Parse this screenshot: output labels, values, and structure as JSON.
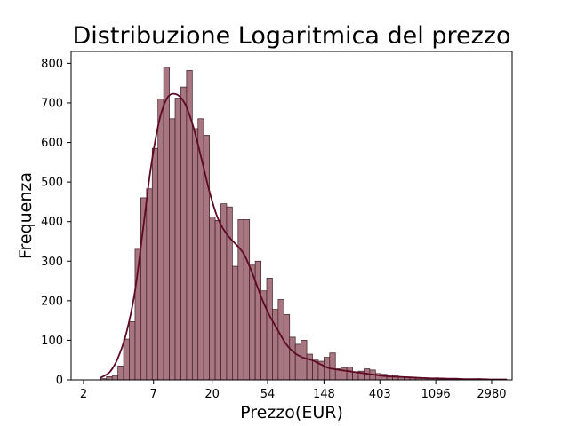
{
  "chart_data": {
    "type": "bar",
    "title": "Distribuzione Logaritmica del prezzo",
    "xlabel": "Prezzo(EUR)",
    "ylabel": "Frequenza",
    "x_scale": "log",
    "xlim": [
      1.6,
      4300
    ],
    "ylim": [
      0,
      830
    ],
    "x_ticks": [
      {
        "value": 2,
        "label": "2"
      },
      {
        "value": 7,
        "label": "7"
      },
      {
        "value": 20,
        "label": "20"
      },
      {
        "value": 54,
        "label": "54"
      },
      {
        "value": 148,
        "label": "148"
      },
      {
        "value": 403,
        "label": "403"
      },
      {
        "value": 1096,
        "label": "1096"
      },
      {
        "value": 2980,
        "label": "2980"
      }
    ],
    "y_ticks": [
      0,
      100,
      200,
      300,
      400,
      500,
      600,
      700,
      800
    ],
    "grid": false,
    "legend": false,
    "colors": {
      "bar": "#a87680",
      "bar_edge": "#3a1a22",
      "kde": "#5e0a24"
    },
    "bins": {
      "x_start": 2.72,
      "x_end": 3930,
      "values": [
        3,
        8,
        10,
        35,
        103,
        147,
        330,
        460,
        483,
        585,
        710,
        790,
        660,
        712,
        740,
        782,
        635,
        660,
        618,
        412,
        403,
        445,
        437,
        287,
        405,
        405,
        290,
        300,
        225,
        257,
        178,
        203,
        165,
        108,
        90,
        100,
        65,
        50,
        47,
        57,
        68,
        28,
        30,
        32,
        20,
        22,
        28,
        25,
        16,
        14,
        12,
        10,
        8,
        6,
        5,
        4,
        4,
        3,
        3,
        2,
        2,
        2,
        1,
        1,
        1,
        1,
        1,
        1,
        1,
        1,
        1
      ]
    },
    "kde": {
      "x": [
        2.7,
        3.2,
        3.7,
        4.3,
        5.0,
        5.8,
        6.7,
        7.8,
        9.0,
        10.5,
        12.2,
        14.2,
        16.5,
        19.2,
        22.3,
        26.0,
        30.3,
        35.3,
        41.0,
        47.8,
        55.6,
        64.7,
        75.3,
        87.6,
        102,
        119,
        138,
        161,
        187,
        218,
        254,
        295,
        344,
        400,
        466,
        542,
        631,
        735,
        855,
        995,
        1158,
        1348,
        1569,
        1826,
        2125,
        2473,
        2878,
        3350,
        3900
      ],
      "y": [
        5,
        20,
        55,
        118,
        220,
        380,
        540,
        658,
        714,
        722,
        700,
        642,
        560,
        472,
        406,
        368,
        344,
        318,
        270,
        212,
        164,
        126,
        90,
        68,
        56,
        50,
        40,
        30,
        26,
        23,
        20,
        17,
        14,
        11,
        9,
        8,
        7,
        6,
        5,
        4,
        4,
        3,
        3,
        2,
        2,
        2,
        1,
        1,
        1
      ]
    }
  }
}
